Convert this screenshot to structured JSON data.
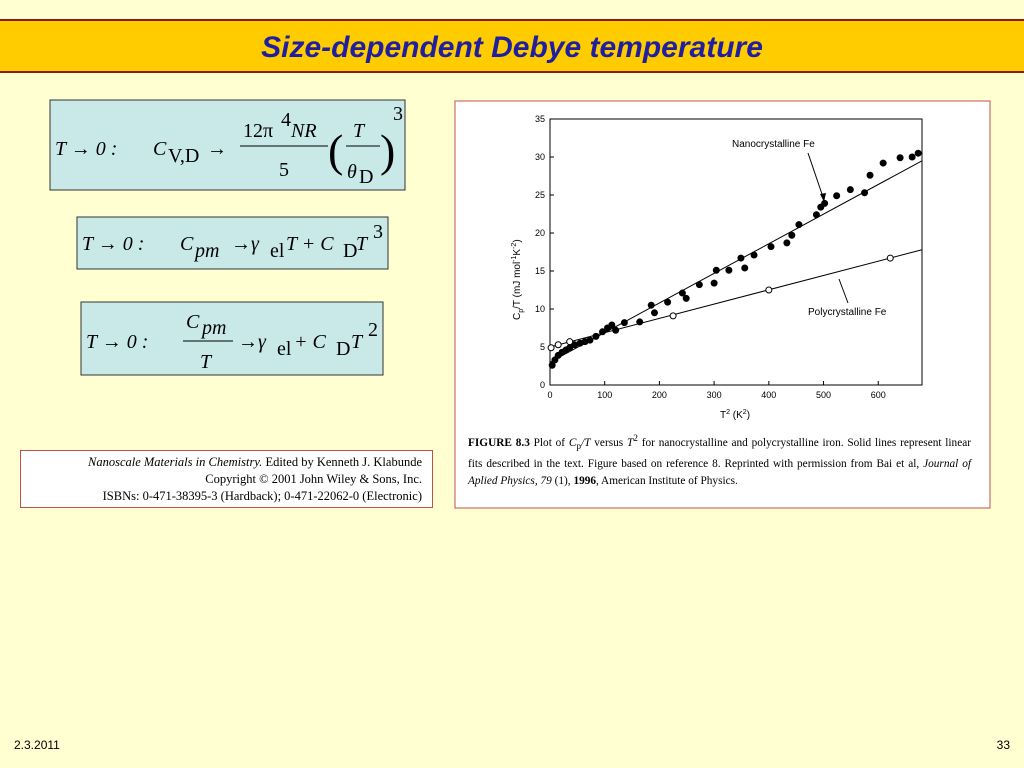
{
  "slide": {
    "title": "Size-dependent Debye temperature",
    "equations": [
      {
        "condition": "T → 0 :",
        "symbol": "C",
        "symbol_sub": "V,D",
        "arrow": "→",
        "num": "12π",
        "num_power": "4",
        "num_tail": "NR",
        "den": "5",
        "open": "(",
        "inner_num": "T",
        "inner_den": "θ",
        "inner_den_sub": "D",
        "close": ")",
        "power": "3"
      },
      {
        "condition": "T → 0 :",
        "symbol": "C",
        "symbol_sub": "pm",
        "arrow": "→γ",
        "arrow_sub": "el",
        "tail": "T + C",
        "tail_sub": "D",
        "tail_var": "T",
        "power": "3"
      },
      {
        "condition": "T → 0 :",
        "num": "C",
        "num_sub": "pm",
        "den": "T",
        "arrow": "→γ",
        "arrow_sub": "el",
        "tail": "+ C",
        "tail_sub": "D",
        "tail_var": "T",
        "power": "2"
      }
    ],
    "citation": {
      "book": "Nanoscale Materials in Chemistry.",
      "editor": " Edited by Kenneth J. Klabunde",
      "copyright": "Copyright © 2001 John Wiley & Sons, Inc.",
      "isbn": "ISBNs: 0-471-38395-3 (Hardback); 0-471-22062-0 (Electronic)"
    },
    "figure": {
      "type": "scatter",
      "xlabel": [
        "T",
        "2",
        " (K",
        "2",
        ")"
      ],
      "ylabel": [
        "C",
        "p",
        "/T (mJ mol",
        "-1",
        "K",
        "-2",
        ")"
      ],
      "xlim": [
        0,
        680
      ],
      "ylim": [
        0,
        35
      ],
      "xticks": [
        0,
        100,
        200,
        300,
        400,
        500,
        600
      ],
      "yticks": [
        0,
        5,
        10,
        15,
        20,
        25,
        30,
        35
      ],
      "series": [
        {
          "name": "Nanocrystalline Fe",
          "color": "#000000",
          "filled": true,
          "x": [
            4,
            9,
            15,
            22,
            29,
            36,
            45,
            55,
            64,
            73,
            84,
            96,
            105,
            113,
            120,
            136,
            164,
            185,
            191,
            215,
            242,
            249,
            273,
            300,
            304,
            327,
            349,
            356,
            373,
            404,
            433,
            442,
            455,
            487,
            495,
            502,
            524,
            549,
            575,
            585,
            609,
            640,
            662,
            673
          ],
          "values": [
            2.6,
            3.3,
            3.9,
            4.3,
            4.6,
            4.9,
            5.3,
            5.5,
            5.7,
            5.9,
            6.4,
            7.0,
            7.5,
            7.9,
            7.2,
            8.2,
            8.3,
            10.5,
            9.5,
            10.9,
            12.1,
            11.4,
            13.2,
            13.4,
            15.1,
            15.1,
            16.7,
            15.4,
            17.1,
            18.2,
            18.7,
            19.7,
            21.1,
            22.4,
            23.4,
            23.9,
            24.9,
            25.7,
            25.3,
            27.6,
            29.2,
            29.9,
            30.0,
            30.5
          ],
          "fit_x": [
            0,
            680
          ],
          "fit_values": [
            3.0,
            29.5
          ]
        },
        {
          "name": "Polycrystalline Fe",
          "color": "#000000",
          "filled": false,
          "x": [
            2,
            15,
            36,
            225,
            400,
            622
          ],
          "values": [
            4.9,
            5.3,
            5.7,
            9.1,
            12.5,
            16.7
          ],
          "fit_x": [
            0,
            680
          ],
          "fit_values": [
            5.0,
            17.8
          ]
        }
      ],
      "caption": [
        "FIGURE 8.3",
        "   Plot of ",
        "C",
        "p",
        "/T",
        " versus ",
        "T",
        "2",
        " for nanocrystalline and polycrystalline iron. Solid lines represent linear fits described in the text. Figure based on reference 8. Reprinted with permission from Bai et al, ",
        "Journal of Aplied Physics, 79",
        " (1), ",
        "1996",
        ", American Institute of Physics."
      ]
    },
    "footer": {
      "date": "2.3.2011",
      "page": "33"
    }
  }
}
